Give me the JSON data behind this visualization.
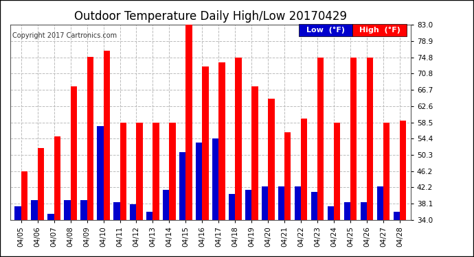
{
  "title": "Outdoor Temperature Daily High/Low 20170429",
  "copyright": "Copyright 2017 Cartronics.com",
  "dates": [
    "04/05",
    "04/06",
    "04/07",
    "04/08",
    "04/09",
    "04/10",
    "04/11",
    "04/12",
    "04/13",
    "04/14",
    "04/15",
    "04/16",
    "04/17",
    "04/18",
    "04/19",
    "04/20",
    "04/21",
    "04/22",
    "04/23",
    "04/24",
    "04/25",
    "04/26",
    "04/27",
    "04/28"
  ],
  "highs": [
    46.2,
    52.0,
    55.0,
    67.5,
    75.0,
    76.5,
    58.5,
    58.5,
    58.5,
    58.5,
    83.0,
    72.5,
    73.5,
    74.8,
    67.5,
    64.5,
    56.0,
    59.5,
    74.8,
    58.5,
    74.8,
    74.8,
    58.5,
    59.0
  ],
  "lows": [
    37.5,
    39.0,
    35.5,
    39.0,
    39.0,
    57.5,
    38.5,
    38.0,
    36.0,
    41.5,
    51.0,
    53.5,
    54.5,
    40.5,
    41.5,
    42.5,
    42.5,
    42.5,
    41.0,
    37.5,
    38.5,
    38.5,
    42.5,
    36.0
  ],
  "high_color": "#ff0000",
  "low_color": "#0000cc",
  "bg_color": "#ffffff",
  "grid_color": "#bbbbbb",
  "ylim_min": 34.0,
  "ylim_max": 83.0,
  "yticks": [
    34.0,
    38.1,
    42.2,
    46.2,
    50.3,
    54.4,
    58.5,
    62.6,
    66.7,
    70.8,
    74.8,
    78.9,
    83.0
  ],
  "title_fontsize": 12,
  "copyright_fontsize": 7,
  "legend_fontsize": 8,
  "tick_fontsize": 7.5
}
